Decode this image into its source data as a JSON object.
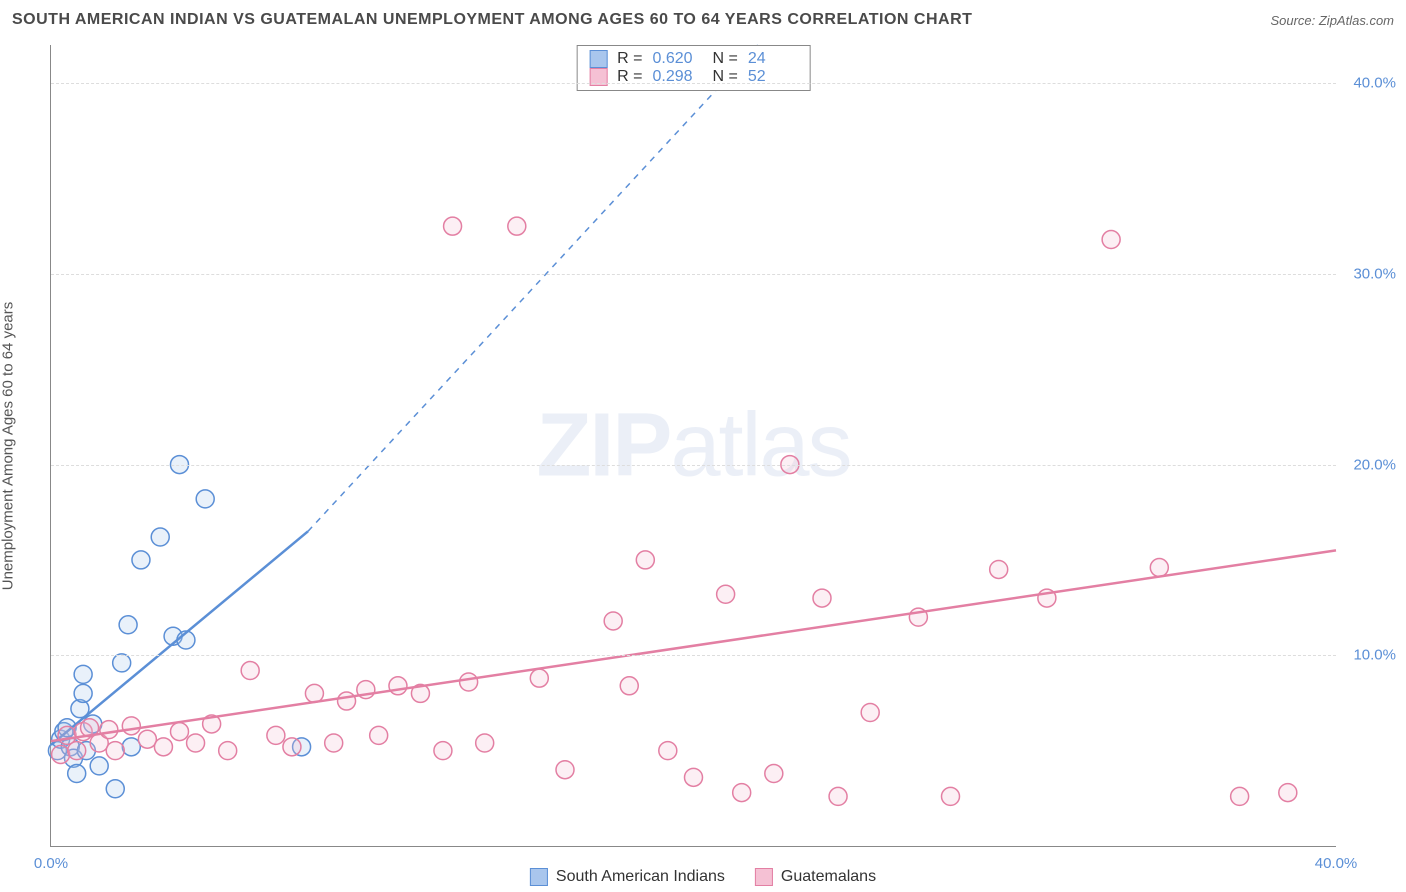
{
  "title": "SOUTH AMERICAN INDIAN VS GUATEMALAN UNEMPLOYMENT AMONG AGES 60 TO 64 YEARS CORRELATION CHART",
  "source": "Source: ZipAtlas.com",
  "y_axis_label": "Unemployment Among Ages 60 to 64 years",
  "watermark_a": "ZIP",
  "watermark_b": "atlas",
  "chart": {
    "type": "scatter",
    "xlim": [
      0,
      40
    ],
    "ylim": [
      0,
      42
    ],
    "x_ticks": [
      {
        "v": 0,
        "l": "0.0%"
      },
      {
        "v": 40,
        "l": "40.0%"
      }
    ],
    "y_ticks": [
      {
        "v": 10,
        "l": "10.0%"
      },
      {
        "v": 20,
        "l": "20.0%"
      },
      {
        "v": 30,
        "l": "30.0%"
      },
      {
        "v": 40,
        "l": "40.0%"
      }
    ],
    "grid_y": [
      10,
      20,
      30,
      40
    ],
    "grid_color": "#dddddd",
    "background_color": "#ffffff",
    "tick_label_color": "#5b8fd6",
    "marker_radius": 9,
    "marker_stroke_width": 1.5,
    "marker_fill_opacity": 0.25,
    "trend_line_width": 2.5,
    "series": [
      {
        "name": "South American Indians",
        "color_stroke": "#5b8fd6",
        "color_fill": "#a9c6ed",
        "R": "0.620",
        "N": "24",
        "trend": {
          "x1": 0,
          "y1": 5.3,
          "x2": 8,
          "y2": 16.5,
          "dash_to_x": 22,
          "dash_to_y": 42
        },
        "points": [
          [
            0.2,
            5.0
          ],
          [
            0.3,
            5.6
          ],
          [
            0.4,
            6.0
          ],
          [
            0.5,
            6.2
          ],
          [
            0.6,
            5.2
          ],
          [
            0.7,
            4.6
          ],
          [
            0.8,
            3.8
          ],
          [
            0.9,
            7.2
          ],
          [
            1.0,
            8.0
          ],
          [
            1.0,
            9.0
          ],
          [
            1.1,
            5.0
          ],
          [
            1.3,
            6.4
          ],
          [
            1.5,
            4.2
          ],
          [
            2.0,
            3.0
          ],
          [
            2.2,
            9.6
          ],
          [
            2.4,
            11.6
          ],
          [
            2.5,
            5.2
          ],
          [
            2.8,
            15.0
          ],
          [
            3.4,
            16.2
          ],
          [
            3.8,
            11.0
          ],
          [
            4.0,
            20.0
          ],
          [
            4.2,
            10.8
          ],
          [
            4.8,
            18.2
          ],
          [
            7.8,
            5.2
          ]
        ]
      },
      {
        "name": "Guatemalans",
        "color_stroke": "#e37fa3",
        "color_fill": "#f5c1d4",
        "R": "0.298",
        "N": "52",
        "trend": {
          "x1": 0,
          "y1": 5.5,
          "x2": 40,
          "y2": 15.5
        },
        "points": [
          [
            0.3,
            4.8
          ],
          [
            0.5,
            5.8
          ],
          [
            0.8,
            5.0
          ],
          [
            1.0,
            6.0
          ],
          [
            1.2,
            6.2
          ],
          [
            1.5,
            5.4
          ],
          [
            1.8,
            6.1
          ],
          [
            2.0,
            5.0
          ],
          [
            2.5,
            6.3
          ],
          [
            3.0,
            5.6
          ],
          [
            3.5,
            5.2
          ],
          [
            4.0,
            6.0
          ],
          [
            4.5,
            5.4
          ],
          [
            5.0,
            6.4
          ],
          [
            5.5,
            5.0
          ],
          [
            6.2,
            9.2
          ],
          [
            7.0,
            5.8
          ],
          [
            7.5,
            5.2
          ],
          [
            8.2,
            8.0
          ],
          [
            8.8,
            5.4
          ],
          [
            9.2,
            7.6
          ],
          [
            9.8,
            8.2
          ],
          [
            10.2,
            5.8
          ],
          [
            10.8,
            8.4
          ],
          [
            11.5,
            8.0
          ],
          [
            12.2,
            5.0
          ],
          [
            12.5,
            32.5
          ],
          [
            13.0,
            8.6
          ],
          [
            13.5,
            5.4
          ],
          [
            14.5,
            32.5
          ],
          [
            15.2,
            8.8
          ],
          [
            16.0,
            4.0
          ],
          [
            17.5,
            11.8
          ],
          [
            18.0,
            8.4
          ],
          [
            18.5,
            15.0
          ],
          [
            19.2,
            5.0
          ],
          [
            20.0,
            3.6
          ],
          [
            21.0,
            13.2
          ],
          [
            21.5,
            2.8
          ],
          [
            22.5,
            3.8
          ],
          [
            23.0,
            20.0
          ],
          [
            24.0,
            13.0
          ],
          [
            24.5,
            2.6
          ],
          [
            25.5,
            7.0
          ],
          [
            27.0,
            12.0
          ],
          [
            28.0,
            2.6
          ],
          [
            29.5,
            14.5
          ],
          [
            31.0,
            13.0
          ],
          [
            33.0,
            31.8
          ],
          [
            34.5,
            14.6
          ],
          [
            37.0,
            2.6
          ],
          [
            38.5,
            2.8
          ]
        ]
      }
    ]
  },
  "legend": {
    "stats_labels": {
      "R": "R =",
      "N": "N ="
    }
  }
}
